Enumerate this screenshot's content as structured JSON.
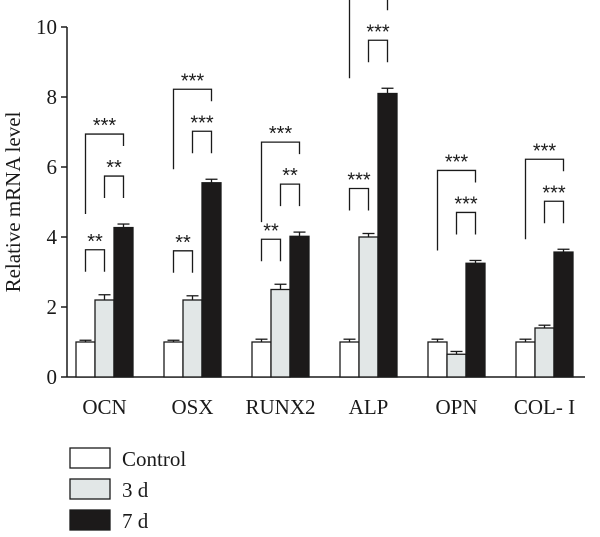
{
  "chart_data": {
    "type": "bar",
    "ylabel": "Relative mRNA level",
    "ylim": [
      0,
      10
    ],
    "yticks": [
      0,
      2,
      4,
      6,
      8,
      10
    ],
    "categories": [
      "OCN",
      "OSX",
      "RUNX2",
      "ALP",
      "OPN",
      "COL- I"
    ],
    "series": [
      {
        "name": "Control",
        "color": "#ffffff",
        "values": [
          1.0,
          1.0,
          1.0,
          1.0,
          1.0,
          1.0
        ],
        "errors": [
          0.05,
          0.05,
          0.08,
          0.08,
          0.08,
          0.08
        ]
      },
      {
        "name": "3 d",
        "color": "#e2e7e7",
        "values": [
          2.2,
          2.2,
          2.5,
          4.0,
          0.65,
          1.4
        ],
        "errors": [
          0.15,
          0.12,
          0.15,
          0.1,
          0.08,
          0.08
        ]
      },
      {
        "name": "7 d",
        "color": "#1c1a1a",
        "values": [
          4.27,
          5.55,
          4.02,
          8.1,
          3.25,
          3.57
        ],
        "errors": [
          0.1,
          0.1,
          0.12,
          0.15,
          0.08,
          0.08
        ]
      }
    ],
    "significance": [
      {
        "category": 0,
        "from": 0,
        "to": 1,
        "label": "**"
      },
      {
        "category": 0,
        "from": 1,
        "to": 2,
        "label": "**"
      },
      {
        "category": 0,
        "from": 0,
        "to": 2,
        "label": "***"
      },
      {
        "category": 1,
        "from": 0,
        "to": 1,
        "label": "**"
      },
      {
        "category": 1,
        "from": 1,
        "to": 2,
        "label": "***"
      },
      {
        "category": 1,
        "from": 0,
        "to": 2,
        "label": "***"
      },
      {
        "category": 2,
        "from": 0,
        "to": 1,
        "label": "**"
      },
      {
        "category": 2,
        "from": 1,
        "to": 2,
        "label": "**"
      },
      {
        "category": 2,
        "from": 0,
        "to": 2,
        "label": "***"
      },
      {
        "category": 3,
        "from": 0,
        "to": 1,
        "label": "***"
      },
      {
        "category": 3,
        "from": 1,
        "to": 2,
        "label": "***"
      },
      {
        "category": 3,
        "from": 0,
        "to": 2,
        "label": "***"
      },
      {
        "category": 4,
        "from": 1,
        "to": 2,
        "label": "***"
      },
      {
        "category": 4,
        "from": 0,
        "to": 2,
        "label": "***"
      },
      {
        "category": 5,
        "from": 1,
        "to": 2,
        "label": "***"
      },
      {
        "category": 5,
        "from": 0,
        "to": 2,
        "label": "***"
      }
    ],
    "legend": [
      "Control",
      "3 d",
      "7 d"
    ],
    "legend_position": "bottom-left",
    "grid": false
  }
}
